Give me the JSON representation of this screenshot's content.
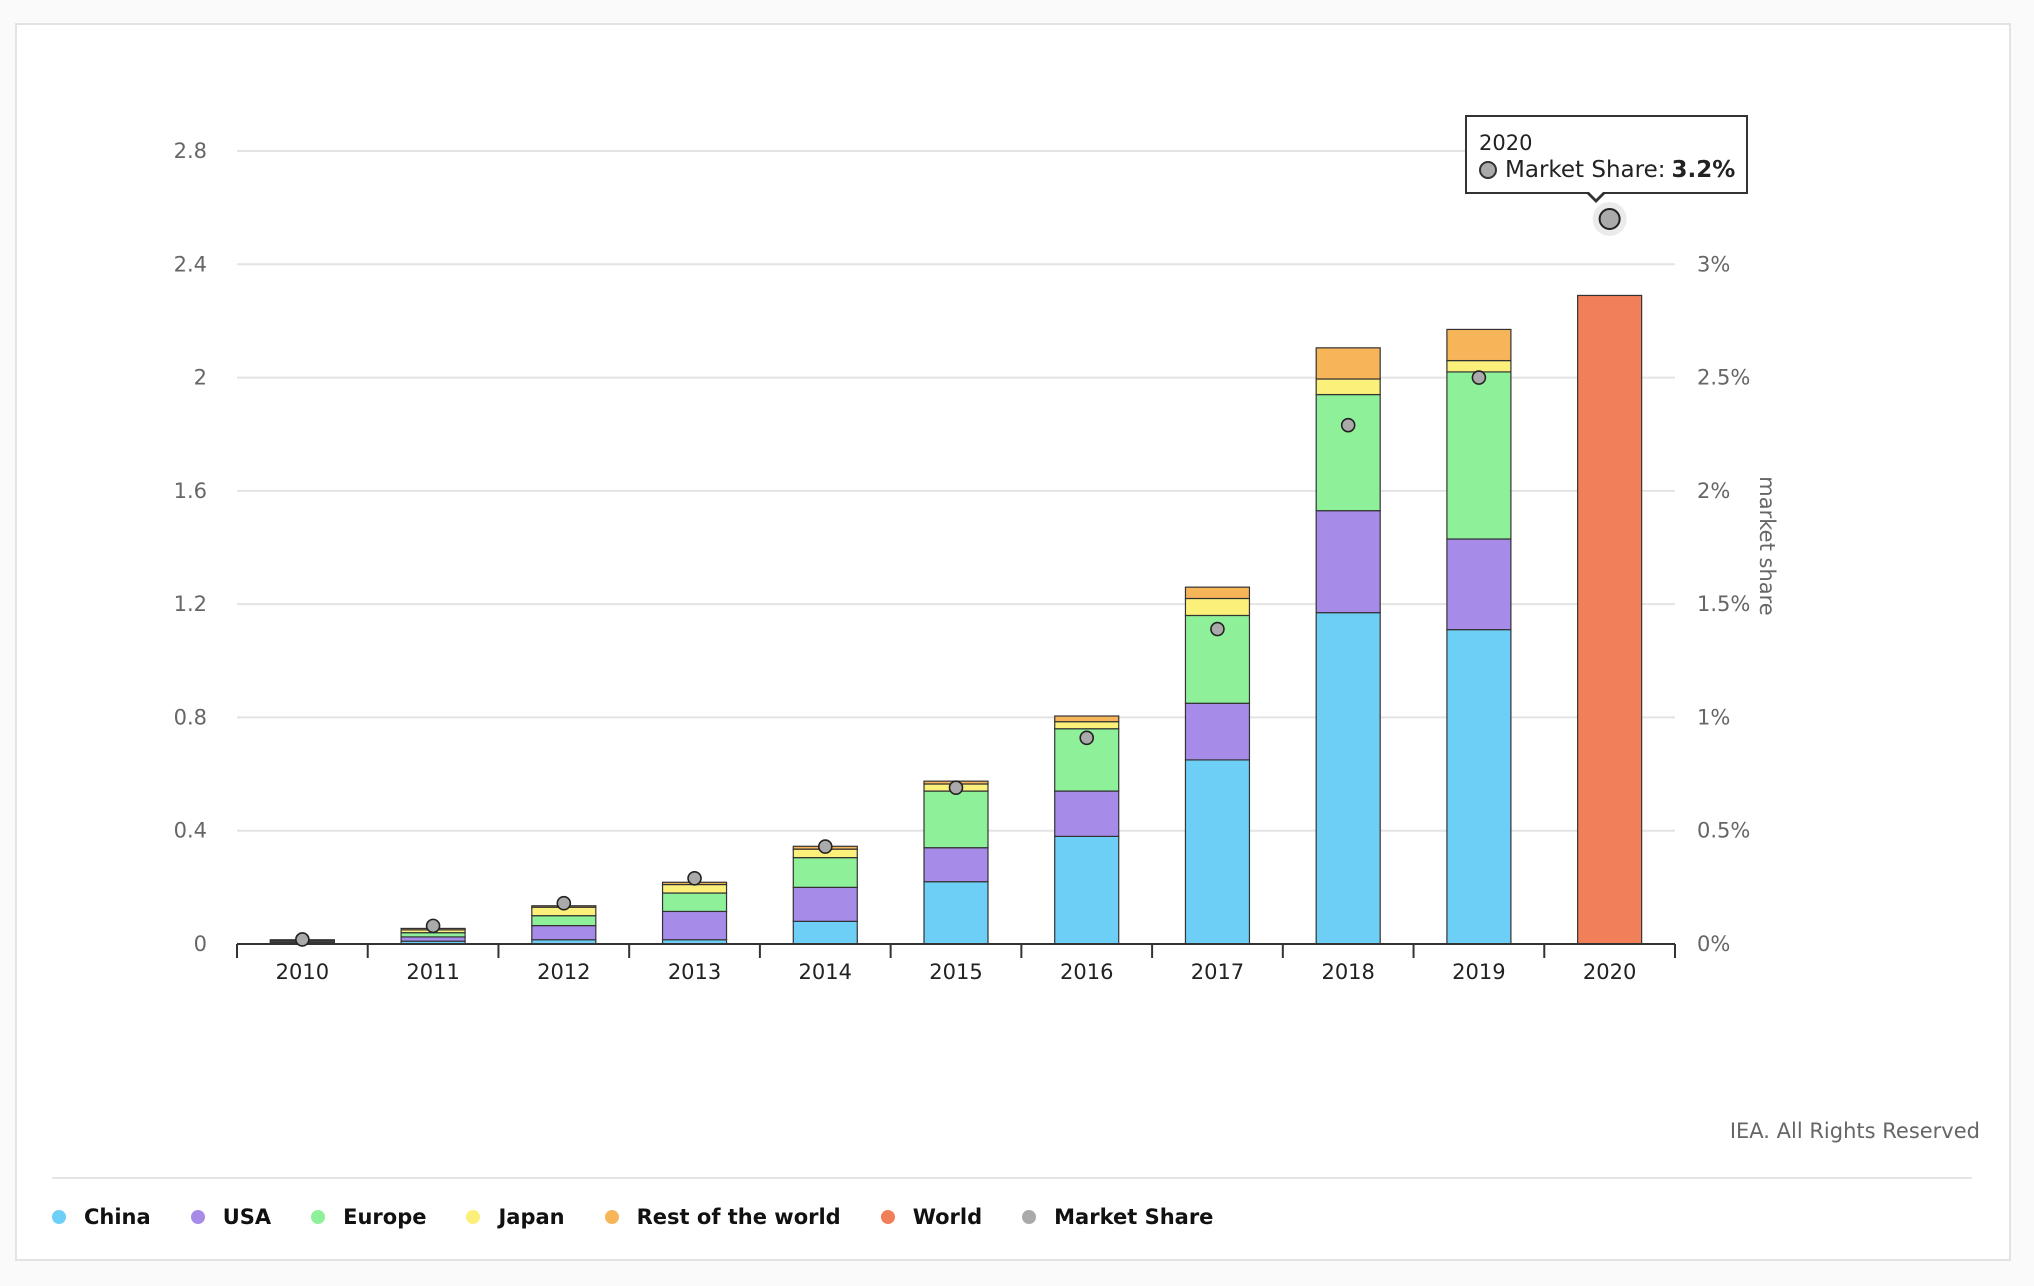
{
  "chart_data": {
    "type": "bar",
    "stacked": true,
    "categories": [
      "2010",
      "2011",
      "2012",
      "2013",
      "2014",
      "2015",
      "2016",
      "2017",
      "2018",
      "2019",
      "2020"
    ],
    "series": [
      {
        "name": "China",
        "color": "#6dcff6",
        "values": [
          0.0,
          0.01,
          0.015,
          0.015,
          0.08,
          0.22,
          0.38,
          0.65,
          1.17,
          1.11,
          0
        ]
      },
      {
        "name": "USA",
        "color": "#a68be8",
        "values": [
          0.005,
          0.015,
          0.05,
          0.1,
          0.12,
          0.12,
          0.16,
          0.2,
          0.36,
          0.32,
          0
        ]
      },
      {
        "name": "Europe",
        "color": "#8ff09a",
        "values": [
          0.005,
          0.015,
          0.035,
          0.065,
          0.105,
          0.2,
          0.22,
          0.31,
          0.41,
          0.59,
          0
        ]
      },
      {
        "name": "Japan",
        "color": "#fbf07a",
        "values": [
          0.003,
          0.01,
          0.03,
          0.03,
          0.03,
          0.025,
          0.025,
          0.06,
          0.055,
          0.04,
          0
        ]
      },
      {
        "name": "Rest of the world",
        "color": "#f7b55a",
        "values": [
          0.002,
          0.005,
          0.005,
          0.008,
          0.01,
          0.01,
          0.02,
          0.04,
          0.11,
          0.11,
          0
        ]
      },
      {
        "name": "World",
        "color": "#f07f5a",
        "values": [
          0,
          0,
          0,
          0,
          0,
          0,
          0,
          0,
          0,
          0,
          2.29
        ]
      }
    ],
    "market_share": {
      "name": "Market Share",
      "color": "#aaaaaa",
      "values": [
        0.02,
        0.08,
        0.18,
        0.29,
        0.43,
        0.69,
        0.91,
        1.39,
        2.29,
        2.5,
        3.2
      ]
    },
    "ylim": [
      0,
      2.8
    ],
    "yticks": [
      "0",
      "0.4",
      "0.8",
      "1.2",
      "1.6",
      "2",
      "2.4",
      "2.8"
    ],
    "y2lim": [
      0,
      3.5
    ],
    "y2ticks": [
      "0%",
      "0.5%",
      "1%",
      "1.5%",
      "2%",
      "2.5%",
      "3%"
    ],
    "y2label": "market share",
    "legend_position": "bottom-left",
    "grid": true
  },
  "tooltip": {
    "year": "2020",
    "label": "Market Share:",
    "value": "3.2%"
  },
  "footer": {
    "copyright": "IEA. All Rights Reserved"
  }
}
